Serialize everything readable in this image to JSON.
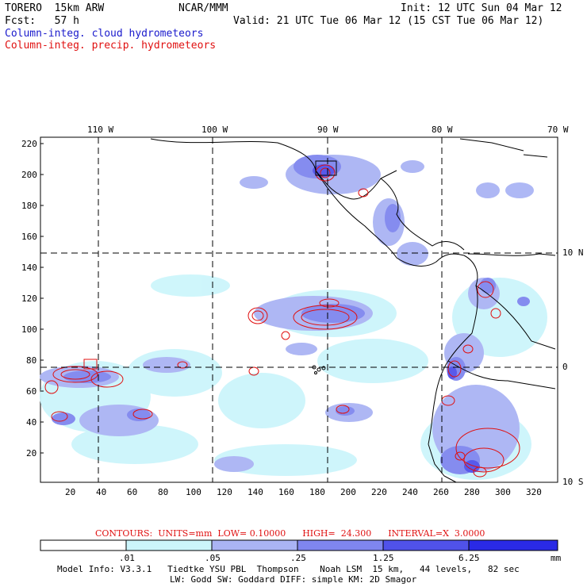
{
  "header": {
    "model": "TORERO  15km ARW",
    "org": "NCAR/MMM",
    "init": "Init: 12 UTC Sun 04 Mar 12",
    "fcst": "Fcst:   57 h",
    "valid": "Valid: 21 UTC Tue 06 Mar 12 (15 CST Tue 06 Mar 12)",
    "field1": "Column-integ. cloud hydrometeors",
    "field2": "Column-integ. precip. hydrometeors"
  },
  "map": {
    "lon_labels": [
      "110 W",
      "100 W",
      "90 W",
      "80 W",
      "70 W"
    ],
    "lat_labels": [
      "10 N",
      "0",
      "10 S"
    ],
    "y_ticks": [
      "220",
      "200",
      "180",
      "160",
      "140",
      "120",
      "100",
      "80",
      "60",
      "40",
      "20"
    ],
    "x_ticks": [
      "20",
      "40",
      "60",
      "80",
      "100",
      "120",
      "140",
      "160",
      "180",
      "200",
      "220",
      "240",
      "260",
      "280",
      "300",
      "320"
    ],
    "colors": {
      "shade1": "#ccf5fb",
      "shade2": "#aab4f4",
      "shade3": "#7f86ef",
      "shade4": "#5052ea",
      "shade5": "#2a2ae6",
      "contour": "#e01010",
      "coast": "#000000"
    }
  },
  "contours": {
    "label": "CONTOURS:  UNITS=mm  LOW= 0.10000      HIGH=  24.300      INTERVAL=X  3.0000"
  },
  "colorbar": {
    "labels": [
      ".01",
      ".05",
      ".25",
      "1.25",
      "6.25"
    ],
    "unit": "mm",
    "colors": [
      "#ffffff",
      "#ccf5fb",
      "#aab4f4",
      "#7f86ef",
      "#5052ea",
      "#2a2ae6"
    ]
  },
  "footer": {
    "line1": "Model Info: V3.3.1   Tiedtke YSU PBL  Thompson    Noah LSM  15 km,   44 levels,   82 sec",
    "line2": "LW: Godd SW: Goddard DIFF: simple KM: 2D Smagor"
  }
}
